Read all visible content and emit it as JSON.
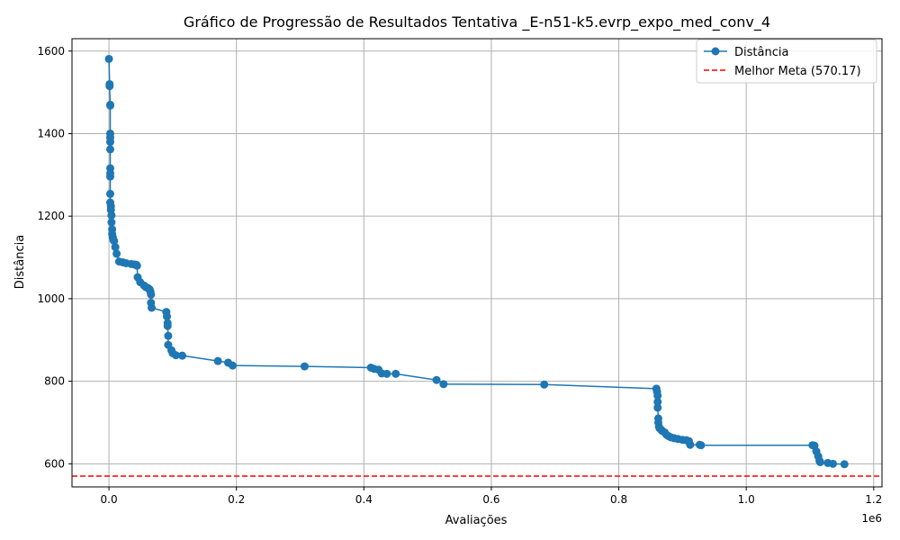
{
  "chart_data": {
    "type": "line",
    "title": "Gráfico de Progressão de Resultados Tentativa _E-n51-k5.evrp_expo_med_conv_4",
    "xlabel": "Avaliações",
    "ylabel": "Distância",
    "x_offset_label": "1e6",
    "x_unit_multiplier": 1000000,
    "xlim": [
      -0.058,
      1.213
    ],
    "ylim": [
      544,
      1630
    ],
    "xticks": [
      0.0,
      0.2,
      0.4,
      0.6,
      0.8,
      1.0,
      1.2
    ],
    "xtick_labels": [
      "0.0",
      "0.2",
      "0.4",
      "0.6",
      "0.8",
      "1.0",
      "1.2"
    ],
    "yticks": [
      600,
      800,
      1000,
      1200,
      1400,
      1600
    ],
    "ytick_labels": [
      "600",
      "800",
      "1000",
      "1200",
      "1400",
      "1600"
    ],
    "grid": true,
    "legend_position": "top-right",
    "series": [
      {
        "name": "Distância",
        "color": "#1f77b4",
        "marker": "circle",
        "x": [
          0.0,
          0.001,
          0.001,
          0.002,
          0.002,
          0.002,
          0.002,
          0.002,
          0.002,
          0.002,
          0.002,
          0.002,
          0.002,
          0.002,
          0.003,
          0.003,
          0.004,
          0.004,
          0.005,
          0.005,
          0.006,
          0.007,
          0.008,
          0.01,
          0.012,
          0.016,
          0.022,
          0.027,
          0.035,
          0.04,
          0.043,
          0.044,
          0.045,
          0.049,
          0.055,
          0.058,
          0.062,
          0.064,
          0.065,
          0.066,
          0.066,
          0.067,
          0.09,
          0.091,
          0.092,
          0.092,
          0.093,
          0.093,
          0.098,
          0.1,
          0.105,
          0.115,
          0.171,
          0.187,
          0.194,
          0.307,
          0.411,
          0.416,
          0.423,
          0.428,
          0.436,
          0.45,
          0.514,
          0.525,
          0.683,
          0.859,
          0.86,
          0.861,
          0.861,
          0.861,
          0.862,
          0.862,
          0.863,
          0.864,
          0.866,
          0.868,
          0.872,
          0.875,
          0.878,
          0.882,
          0.887,
          0.893,
          0.9,
          0.906,
          0.91,
          0.912,
          0.927,
          0.929,
          1.104,
          1.107,
          1.11,
          1.113,
          1.115,
          1.116,
          1.128,
          1.136,
          1.154
        ],
        "y": [
          1581,
          1520,
          1515,
          1470,
          1468,
          1400,
          1390,
          1380,
          1362,
          1316,
          1304,
          1296,
          1254,
          1233,
          1224,
          1215,
          1202,
          1185,
          1168,
          1157,
          1149,
          1142,
          1140,
          1125,
          1109,
          1090,
          1088,
          1086,
          1084,
          1083,
          1082,
          1080,
          1052,
          1040,
          1032,
          1028,
          1025,
          1022,
          1017,
          1010,
          990,
          978,
          968,
          957,
          941,
          934,
          910,
          888,
          875,
          868,
          863,
          862,
          849,
          845,
          838,
          836,
          833,
          830,
          828,
          819,
          818,
          818,
          803,
          793,
          792,
          782,
          775,
          765,
          750,
          736,
          710,
          700,
          690,
          686,
          683,
          680,
          676,
          670,
          667,
          664,
          662,
          660,
          658,
          657,
          655,
          646,
          646,
          645,
          645,
          644,
          630,
          618,
          607,
          604,
          602,
          600,
          599
        ]
      },
      {
        "name": "Melhor Meta (570.17)",
        "color": "#ff0000",
        "style": "dashed",
        "y_value": 570.17
      }
    ]
  }
}
